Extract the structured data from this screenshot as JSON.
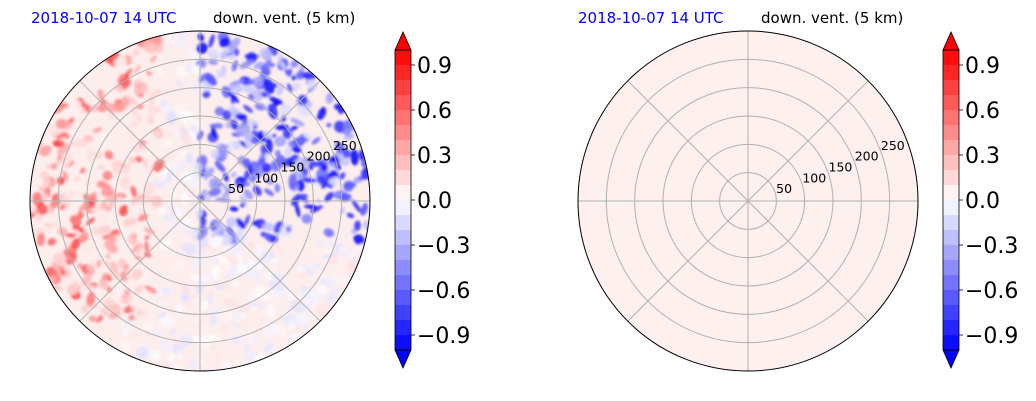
{
  "chart_data": [
    {
      "type": "heatmap",
      "projection": "polar",
      "title_left": "2018-10-07 14 UTC",
      "title_right": "down. vent. (5 km)",
      "radial_ticks": [
        50,
        100,
        150,
        200,
        250
      ],
      "rlim": [
        0,
        300
      ],
      "grid": true,
      "field": "mixed: positive (red) values in north-west/west, negative (blue) values in north-east/east, near-zero elsewhere",
      "colorbar": {
        "ticks": [
          "0.9",
          "0.6",
          "0.3",
          "0.0",
          "−0.3",
          "−0.6",
          "−0.9"
        ],
        "range": [
          -1.0,
          1.0
        ],
        "extend": "both"
      }
    },
    {
      "type": "heatmap",
      "projection": "polar",
      "title_left": "2018-10-07 14 UTC",
      "title_right": "down. vent. (5 km)",
      "radial_ticks": [
        50,
        100,
        150,
        200,
        250
      ],
      "rlim": [
        0,
        300
      ],
      "grid": true,
      "field": "uniform near-zero positive value",
      "colorbar": {
        "ticks": [
          "0.9",
          "0.6",
          "0.3",
          "0.0",
          "−0.3",
          "−0.6",
          "−0.9"
        ],
        "range": [
          -1.0,
          1.0
        ],
        "extend": "both"
      }
    }
  ],
  "colors": {
    "title_date": "#0000ff",
    "colormap_neg": "#0000ff",
    "colormap_pos": "#ff0000",
    "uniform_fill": "#fdf0ee",
    "grid": "#b0b0b0"
  }
}
